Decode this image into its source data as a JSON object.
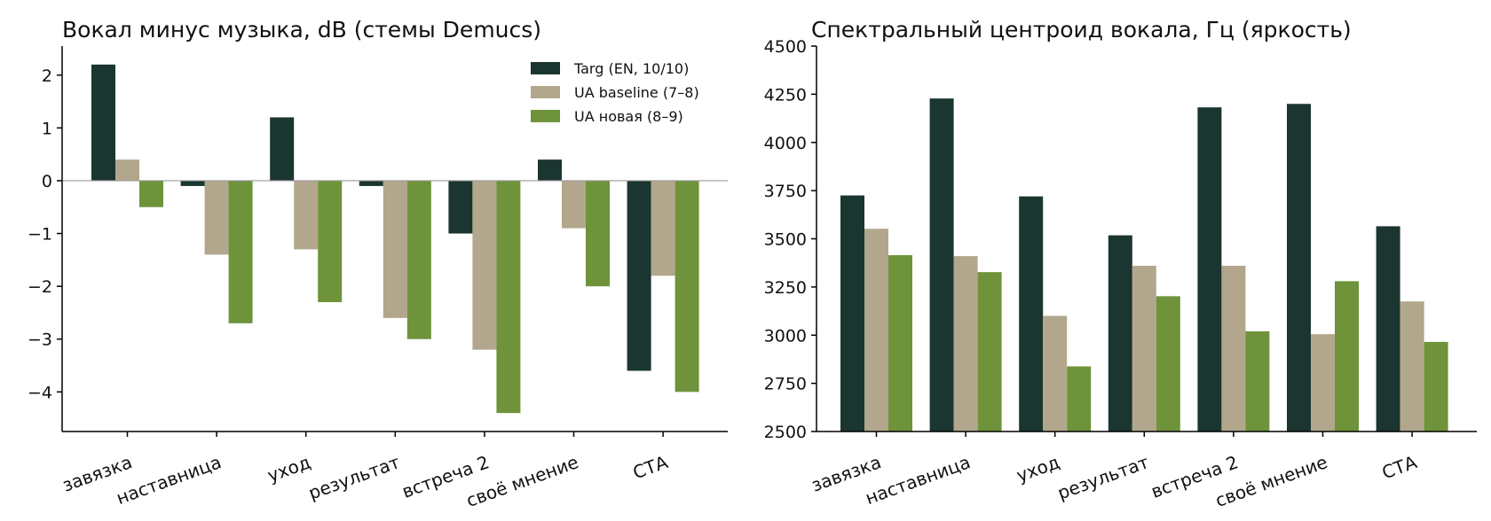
{
  "chart_data": [
    {
      "type": "bar",
      "title": "Вокал минус музыка, dB (стемы Demucs)",
      "xlabel": "",
      "ylabel": "",
      "categories": [
        "завязка",
        "наставница",
        "уход",
        "результат",
        "встреча 2",
        "своё мнение",
        "СТА"
      ],
      "series": [
        {
          "name": "Targ (EN, 10/10)",
          "color": "#1b3530",
          "values": [
            2.2,
            -0.1,
            1.2,
            -0.1,
            -1.0,
            0.4,
            -3.6
          ]
        },
        {
          "name": "UA baseline (7–8)",
          "color": "#b2a78c",
          "values": [
            0.4,
            -1.4,
            -1.3,
            -2.6,
            -3.2,
            -0.9,
            -1.8
          ]
        },
        {
          "name": "UA новая (8–9)",
          "color": "#6e933b",
          "values": [
            -0.5,
            -2.7,
            -2.3,
            -3.0,
            -4.4,
            -2.0,
            -4.0
          ]
        }
      ],
      "ylim": [
        -4.75,
        2.55
      ],
      "yticks": [
        2,
        1,
        0,
        -1,
        -2,
        -3,
        -4
      ],
      "ytick_labels": [
        "2",
        "1",
        "0",
        "−1",
        "−2",
        "−3",
        "−4"
      ],
      "zero_line": true,
      "grid": false,
      "legend": "top-right"
    },
    {
      "type": "bar",
      "title": "Спектральный центроид вокала, Гц (яркость)",
      "xlabel": "",
      "ylabel": "",
      "categories": [
        "завязка",
        "наставница",
        "уход",
        "результат",
        "встреча 2",
        "своё мнение",
        "СТА"
      ],
      "series": [
        {
          "name": "Targ (EN, 10/10)",
          "color": "#1b3530",
          "values": [
            3725,
            4228,
            3720,
            3518,
            4182,
            4200,
            3565
          ]
        },
        {
          "name": "UA baseline (7–8)",
          "color": "#b2a78c",
          "values": [
            3552,
            3410,
            3100,
            3360,
            3360,
            3005,
            3175
          ]
        },
        {
          "name": "UA новая (8–9)",
          "color": "#6e933b",
          "values": [
            3415,
            3327,
            2838,
            3202,
            3020,
            3280,
            2965
          ]
        }
      ],
      "ylim": [
        2500,
        4500
      ],
      "yticks": [
        2500,
        2750,
        3000,
        3250,
        3500,
        3750,
        4000,
        4250,
        4500
      ],
      "ytick_labels": [
        "2500",
        "2750",
        "3000",
        "3250",
        "3500",
        "3750",
        "4000",
        "4250",
        "4500"
      ],
      "grid": false,
      "legend": "none"
    }
  ]
}
